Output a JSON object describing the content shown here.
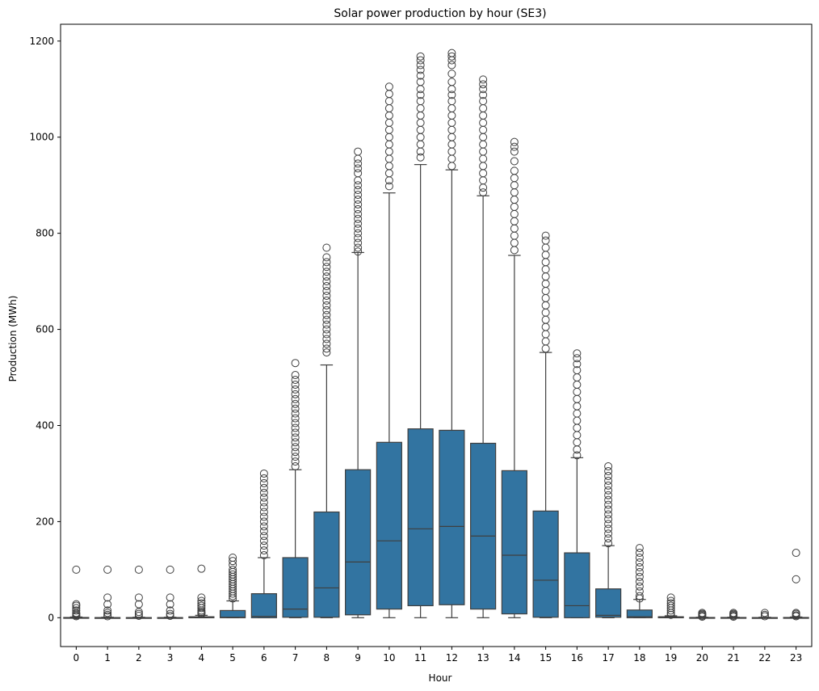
{
  "chart_data": {
    "type": "box",
    "title": "Solar power production by hour (SE3)",
    "xlabel": "Hour",
    "ylabel": "Production (MWh)",
    "ylim": [
      -60,
      1235
    ],
    "yticks": [
      0,
      200,
      400,
      600,
      800,
      1000,
      1200
    ],
    "categories": [
      "0",
      "1",
      "2",
      "3",
      "4",
      "5",
      "6",
      "7",
      "8",
      "9",
      "10",
      "11",
      "12",
      "13",
      "14",
      "15",
      "16",
      "17",
      "18",
      "19",
      "20",
      "21",
      "22",
      "23"
    ],
    "boxes": [
      {
        "q1": 0,
        "median": 0,
        "q3": 0.5,
        "whislo": 0,
        "whishi": 1.5,
        "fliers": [
          100,
          28,
          25,
          20,
          15,
          10,
          8,
          5,
          3
        ]
      },
      {
        "q1": 0,
        "median": 0,
        "q3": 0.3,
        "whislo": 0,
        "whishi": 1,
        "fliers": [
          100,
          42,
          28,
          15,
          10,
          6,
          3
        ]
      },
      {
        "q1": 0,
        "median": 0,
        "q3": 0.3,
        "whislo": 0,
        "whishi": 1,
        "fliers": [
          100,
          42,
          28,
          12,
          8,
          4
        ]
      },
      {
        "q1": 0,
        "median": 0,
        "q3": 0.3,
        "whislo": 0,
        "whishi": 1,
        "fliers": [
          100,
          42,
          28,
          15,
          8,
          4
        ]
      },
      {
        "q1": 0,
        "median": 0.5,
        "q3": 2,
        "whislo": 0,
        "whishi": 5,
        "fliers": [
          102,
          42,
          35,
          30,
          25,
          20,
          15,
          12,
          10,
          8
        ]
      },
      {
        "q1": 0,
        "median": 1,
        "q3": 15,
        "whislo": 0,
        "whishi": 35,
        "fliers": [
          125,
          118,
          110,
          100,
          95,
          90,
          85,
          80,
          75,
          70,
          65,
          60,
          55,
          50,
          45,
          40
        ]
      },
      {
        "q1": 0,
        "median": 3,
        "q3": 50,
        "whislo": 0,
        "whishi": 125,
        "fliers": [
          300,
          290,
          280,
          270,
          260,
          250,
          240,
          230,
          220,
          210,
          200,
          190,
          180,
          170,
          160,
          150,
          140,
          130
        ]
      },
      {
        "q1": 1,
        "median": 18,
        "q3": 125,
        "whislo": 0,
        "whishi": 308,
        "fliers": [
          530,
          505,
          495,
          485,
          475,
          465,
          455,
          445,
          435,
          425,
          415,
          405,
          395,
          385,
          375,
          365,
          355,
          345,
          335,
          325,
          315
        ]
      },
      {
        "q1": 1,
        "median": 62,
        "q3": 220,
        "whislo": 0,
        "whishi": 526,
        "fliers": [
          770,
          750,
          740,
          730,
          720,
          710,
          700,
          690,
          680,
          670,
          660,
          650,
          640,
          630,
          620,
          610,
          600,
          590,
          580,
          570,
          560,
          552
        ]
      },
      {
        "q1": 6,
        "median": 116,
        "q3": 308,
        "whislo": 0,
        "whishi": 760,
        "fliers": [
          970,
          955,
          945,
          935,
          925,
          910,
          900,
          890,
          880,
          870,
          860,
          850,
          840,
          830,
          820,
          810,
          800,
          790,
          780,
          770,
          762
        ]
      },
      {
        "q1": 18,
        "median": 160,
        "q3": 365,
        "whislo": 0,
        "whishi": 884,
        "fliers": [
          1105,
          1090,
          1075,
          1060,
          1045,
          1030,
          1015,
          1000,
          985,
          970,
          955,
          940,
          925,
          910,
          898
        ]
      },
      {
        "q1": 25,
        "median": 185,
        "q3": 393,
        "whislo": 0,
        "whishi": 943,
        "fliers": [
          1168,
          1160,
          1150,
          1140,
          1128,
          1115,
          1100,
          1088,
          1075,
          1060,
          1045,
          1030,
          1015,
          1000,
          985,
          970,
          958
        ]
      },
      {
        "q1": 27,
        "median": 190,
        "q3": 390,
        "whislo": 0,
        "whishi": 932,
        "fliers": [
          1175,
          1168,
          1160,
          1150,
          1132,
          1115,
          1100,
          1088,
          1075,
          1060,
          1045,
          1030,
          1015,
          1000,
          985,
          970,
          955,
          940
        ]
      },
      {
        "q1": 18,
        "median": 170,
        "q3": 363,
        "whislo": 0,
        "whishi": 878,
        "fliers": [
          1120,
          1110,
          1100,
          1088,
          1075,
          1060,
          1045,
          1030,
          1015,
          1000,
          985,
          970,
          955,
          940,
          925,
          910,
          895,
          885
        ]
      },
      {
        "q1": 8,
        "median": 130,
        "q3": 306,
        "whislo": 0,
        "whishi": 754,
        "fliers": [
          990,
          980,
          970,
          950,
          930,
          915,
          900,
          885,
          870,
          855,
          840,
          825,
          810,
          795,
          780,
          765
        ]
      },
      {
        "q1": 1,
        "median": 78,
        "q3": 222,
        "whislo": 0,
        "whishi": 552,
        "fliers": [
          795,
          785,
          770,
          755,
          740,
          725,
          710,
          695,
          680,
          665,
          650,
          635,
          620,
          605,
          590,
          575,
          560
        ]
      },
      {
        "q1": 0,
        "median": 25,
        "q3": 135,
        "whislo": 0,
        "whishi": 333,
        "fliers": [
          550,
          540,
          528,
          515,
          500,
          485,
          470,
          455,
          440,
          425,
          410,
          395,
          380,
          365,
          350,
          338
        ]
      },
      {
        "q1": 1,
        "median": 5,
        "q3": 60,
        "whislo": 0,
        "whishi": 150,
        "fliers": [
          315,
          305,
          295,
          285,
          275,
          265,
          255,
          245,
          235,
          225,
          215,
          205,
          195,
          185,
          175,
          165,
          155
        ]
      },
      {
        "q1": 0,
        "median": 2,
        "q3": 16,
        "whislo": 0,
        "whishi": 38,
        "fliers": [
          145,
          135,
          125,
          115,
          105,
          95,
          85,
          75,
          65,
          55,
          45,
          40
        ]
      },
      {
        "q1": 0,
        "median": 0.5,
        "q3": 2,
        "whislo": 0,
        "whishi": 4,
        "fliers": [
          42,
          35,
          30,
          25,
          20,
          15,
          10,
          6
        ]
      },
      {
        "q1": 0,
        "median": 0,
        "q3": 0.5,
        "whislo": 0,
        "whishi": 1,
        "fliers": [
          10,
          8,
          6,
          4,
          2
        ]
      },
      {
        "q1": 0,
        "median": 0,
        "q3": 0.5,
        "whislo": 0,
        "whishi": 1,
        "fliers": [
          10,
          8,
          6,
          4,
          2
        ]
      },
      {
        "q1": 0,
        "median": 0,
        "q3": 0.3,
        "whislo": 0,
        "whishi": 1,
        "fliers": [
          10,
          6,
          3
        ]
      },
      {
        "q1": 0,
        "median": 0,
        "q3": 0.5,
        "whislo": 0,
        "whishi": 1.5,
        "fliers": [
          135,
          80,
          10,
          8,
          5,
          3
        ]
      }
    ],
    "grid": false,
    "colors": {
      "box": "#3274a1",
      "line": "#3f3f3f"
    }
  }
}
